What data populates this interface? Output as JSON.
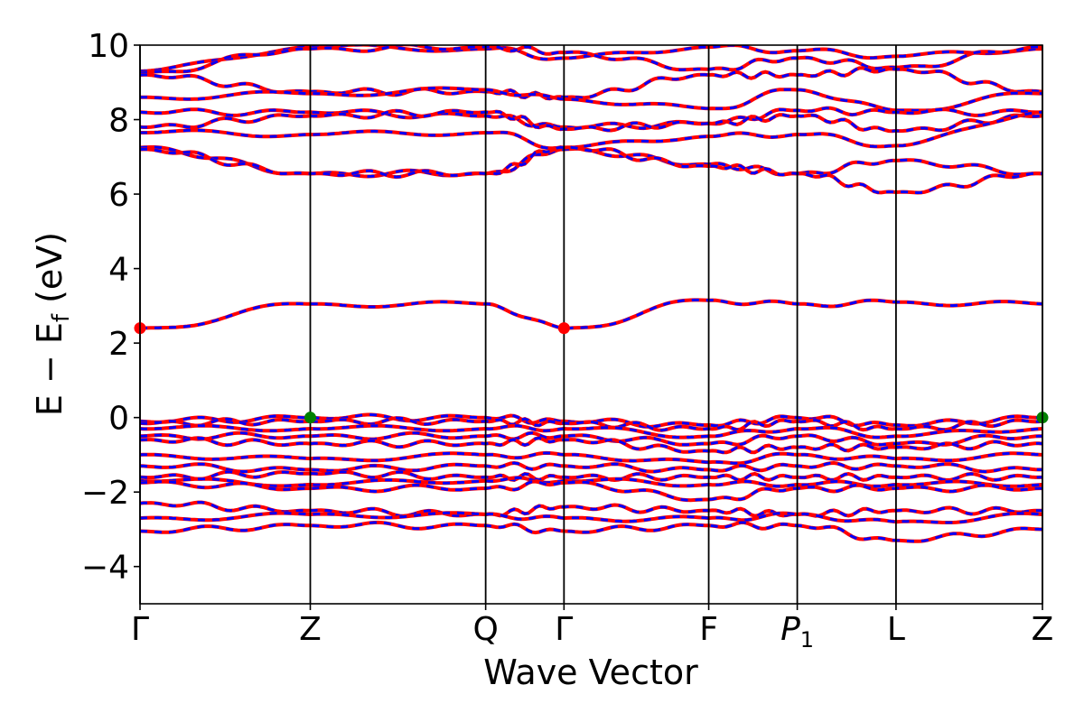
{
  "chart_data": {
    "type": "line",
    "title": "",
    "xlabel": "Wave Vector",
    "ylabel_main": "E − E",
    "ylabel_sub": "f",
    "ylabel_unit": " (eV)",
    "ylim": [
      -5,
      10
    ],
    "yticks": [
      -4,
      -2,
      0,
      2,
      4,
      6,
      8,
      10
    ],
    "ytick_labels": [
      "−4",
      "−2",
      "0",
      "2",
      "4",
      "6",
      "8",
      "10"
    ],
    "kpoints": [
      {
        "label": "Γ",
        "sub": "",
        "x": 0.0
      },
      {
        "label": "Z",
        "sub": "",
        "x": 1.0
      },
      {
        "label": "Q",
        "sub": "",
        "x": 2.03
      },
      {
        "label": "Γ",
        "sub": "",
        "x": 2.49
      },
      {
        "label": "F",
        "sub": "",
        "x": 3.34
      },
      {
        "label": "P",
        "sub": "1",
        "x": 3.86
      },
      {
        "label": "L",
        "sub": "",
        "x": 4.44
      },
      {
        "label": "Z",
        "sub": "",
        "x": 5.3
      }
    ],
    "xlim": [
      0.0,
      5.3
    ],
    "colors": {
      "spin_up": "#ff0000",
      "spin_down": "#0000ff",
      "vbm": "#008000",
      "cbm": "#ff0000"
    },
    "series": [
      {
        "values": [
          9.3,
          9.95,
          9.9,
          9.65,
          9.95,
          9.85,
          9.7,
          9.9
        ]
      },
      {
        "values": [
          9.25,
          9.9,
          9.95,
          9.8,
          9.35,
          9.65,
          9.4,
          9.95
        ]
      },
      {
        "values": [
          9.2,
          8.75,
          8.75,
          8.6,
          9.2,
          9.2,
          9.35,
          8.75
        ]
      },
      {
        "values": [
          8.6,
          8.7,
          8.8,
          8.55,
          8.3,
          8.8,
          8.25,
          8.7
        ]
      },
      {
        "values": [
          8.2,
          8.2,
          8.1,
          7.8,
          7.9,
          8.25,
          8.2,
          8.2
        ]
      },
      {
        "values": [
          7.8,
          8.1,
          8.2,
          7.75,
          7.9,
          8.1,
          7.7,
          8.1
        ]
      },
      {
        "values": [
          7.65,
          7.6,
          7.65,
          7.25,
          7.55,
          7.6,
          7.3,
          8.2
        ]
      },
      {
        "values": [
          7.25,
          6.55,
          6.55,
          7.2,
          6.8,
          6.55,
          6.9,
          6.55
        ]
      },
      {
        "values": [
          7.2,
          6.55,
          6.55,
          7.25,
          6.75,
          6.55,
          6.05,
          6.55
        ]
      },
      {
        "values": [
          2.4,
          3.05,
          3.05,
          2.4,
          3.15,
          3.05,
          3.1,
          3.05
        ]
      },
      {
        "values": [
          -0.1,
          0.0,
          0.0,
          -0.1,
          -0.2,
          0.0,
          -0.2,
          0.0
        ]
      },
      {
        "values": [
          -0.15,
          -0.1,
          -0.1,
          -0.15,
          -0.3,
          -0.1,
          -0.3,
          -0.1
        ]
      },
      {
        "values": [
          -0.3,
          -0.3,
          -0.3,
          -0.3,
          -0.5,
          -0.3,
          -0.5,
          -0.3
        ]
      },
      {
        "values": [
          -0.5,
          -0.5,
          -0.5,
          -0.5,
          -0.7,
          -0.5,
          -0.7,
          -0.5
        ]
      },
      {
        "values": [
          -0.6,
          -0.7,
          -0.7,
          -0.6,
          -0.9,
          -0.8,
          -0.8,
          -0.7
        ]
      },
      {
        "values": [
          -1.0,
          -1.1,
          -1.0,
          -1.0,
          -1.2,
          -1.0,
          -1.1,
          -1.0
        ]
      },
      {
        "values": [
          -1.3,
          -1.4,
          -1.3,
          -1.3,
          -1.4,
          -1.3,
          -1.3,
          -1.4
        ]
      },
      {
        "values": [
          -1.6,
          -1.5,
          -1.6,
          -1.6,
          -1.6,
          -1.6,
          -1.6,
          -1.6
        ]
      },
      {
        "values": [
          -1.7,
          -1.8,
          -1.7,
          -1.7,
          -1.8,
          -1.8,
          -1.8,
          -1.8
        ]
      },
      {
        "values": [
          -1.75,
          -1.9,
          -1.9,
          -1.75,
          -2.2,
          -1.9,
          -1.9,
          -1.9
        ]
      },
      {
        "values": [
          -2.3,
          -2.5,
          -2.6,
          -2.4,
          -2.5,
          -2.6,
          -2.5,
          -2.5
        ]
      },
      {
        "values": [
          -2.7,
          -2.6,
          -2.6,
          -2.7,
          -2.7,
          -2.6,
          -2.8,
          -2.6
        ]
      },
      {
        "values": [
          -3.05,
          -2.9,
          -2.9,
          -3.05,
          -2.9,
          -2.9,
          -3.3,
          -3.0
        ]
      }
    ],
    "markers": [
      {
        "type": "cbm",
        "x": 0.0,
        "y": 2.4
      },
      {
        "type": "cbm",
        "x": 2.49,
        "y": 2.4
      },
      {
        "type": "vbm",
        "x": 1.0,
        "y": 0.0
      },
      {
        "type": "vbm",
        "x": 5.3,
        "y": 0.0
      }
    ]
  }
}
